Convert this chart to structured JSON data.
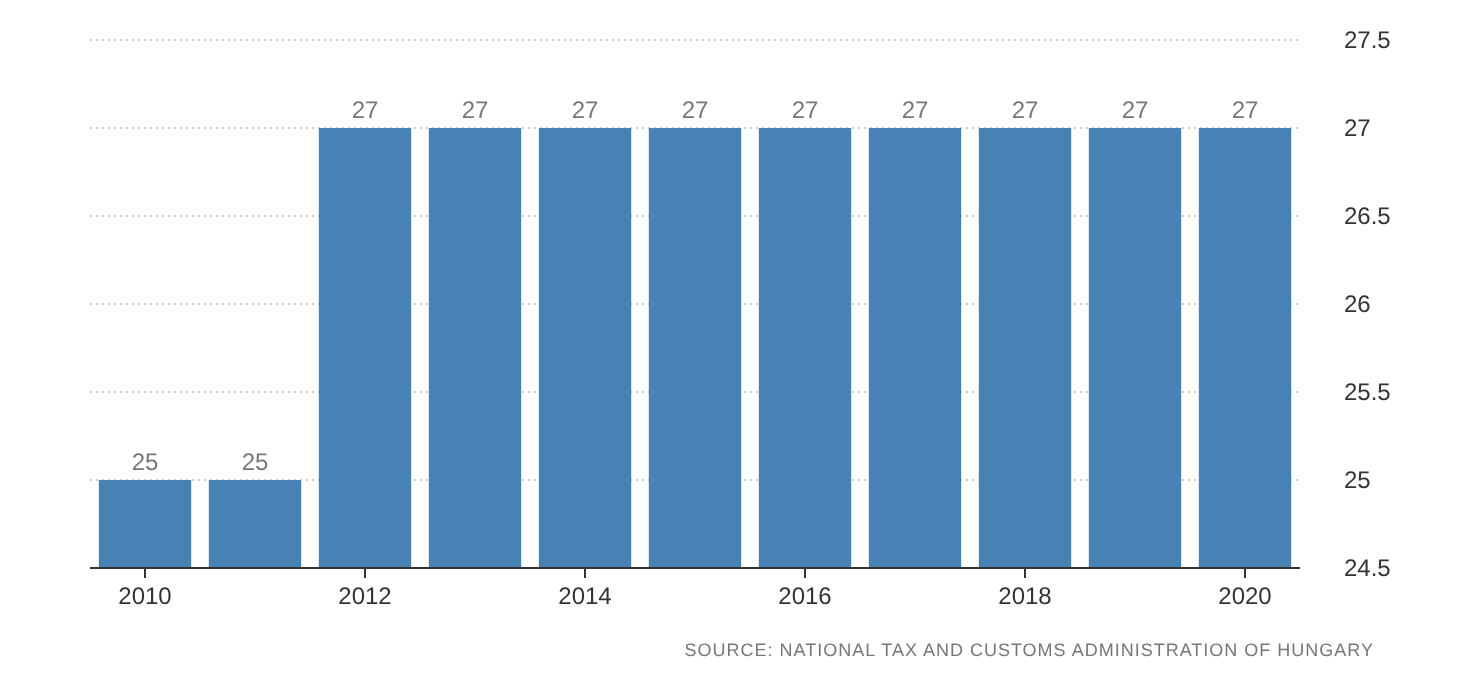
{
  "chart_data": {
    "type": "bar",
    "categories": [
      "2010",
      null,
      "2012",
      null,
      "2014",
      null,
      "2016",
      null,
      "2018",
      null,
      "2020"
    ],
    "values": [
      25,
      25,
      27,
      27,
      27,
      27,
      27,
      27,
      27,
      27,
      27
    ],
    "color": "#4682b4",
    "ylim": [
      24.5,
      27.5
    ],
    "yticks": [
      24.5,
      25,
      25.5,
      26,
      26.5,
      27,
      27.5
    ],
    "grid": "y",
    "data_labels": true,
    "annotations": [
      "SOURCE: NATIONAL TAX AND CUSTOMS ADMINISTRATION OF HUNGARY"
    ]
  }
}
